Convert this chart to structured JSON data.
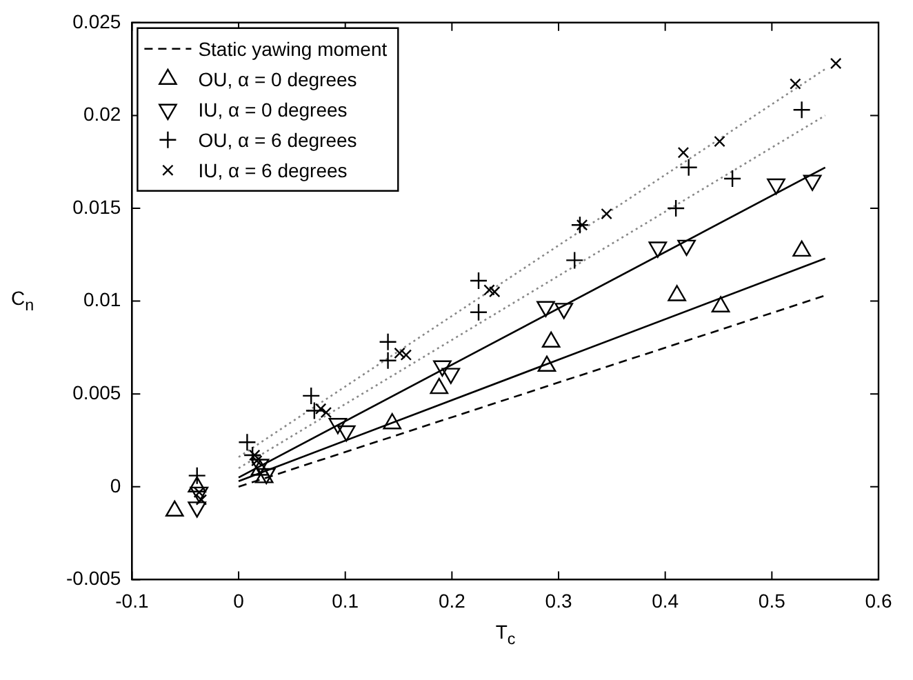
{
  "chart_data": {
    "type": "scatter",
    "xlabel": "T$_{c}$",
    "ylabel": "C$_{n}$",
    "xlim": [
      -0.1,
      0.6
    ],
    "xticks": [
      -0.1,
      0,
      0.1,
      0.2,
      0.3,
      0.4,
      0.5,
      0.6
    ],
    "ylim": [
      -0.005,
      0.025
    ],
    "yticks": [
      -0.005,
      0,
      0.005,
      0.01,
      0.015,
      0.02,
      0.025
    ],
    "grid": false,
    "legend": "top left",
    "series": [
      {
        "name": "Static yawing moment",
        "type": "line",
        "color": "#000000",
        "line_style": "dashed",
        "marker": "none",
        "x": [
          0,
          0.55
        ],
        "values": [
          0,
          0.0103
        ]
      },
      {
        "name": "OU, α = 0 degrees",
        "color": "#000000",
        "marker": "triangle",
        "x": [
          -0.06,
          -0.039,
          0.024,
          0.02,
          0.144,
          0.188,
          0.289,
          0.293,
          0.411,
          0.452,
          0.528
        ],
        "values": [
          -0.0013,
          0,
          0.0005,
          0.0009,
          0.0034,
          0.0053,
          0.0065,
          0.0078,
          0.0103,
          0.0097,
          0.0127
        ]
      },
      {
        "name": "IU, α = 0 degrees",
        "color": "#000000",
        "marker": "triangle-down",
        "x": [
          -0.039,
          -0.037,
          0.02,
          0.026,
          0.093,
          0.101,
          0.191,
          0.199,
          0.288,
          0.305,
          0.393,
          0.42,
          0.504,
          0.538
        ],
        "values": [
          -0.0011,
          -0.0003,
          0.0012,
          0.0007,
          0.0034,
          0.003,
          0.0065,
          0.0061,
          0.0097,
          0.0096,
          0.0129,
          0.013,
          0.0163,
          0.0165
        ]
      },
      {
        "name": "OU, α = 6 degrees",
        "color": "#000000",
        "marker": "cross",
        "x": [
          -0.039,
          0.008,
          0.013,
          0.068,
          0.071,
          0.14,
          0.14,
          0.225,
          0.225,
          0.315,
          0.32,
          0.41,
          0.422,
          0.463,
          0.528
        ],
        "values": [
          0.0006,
          0.0024,
          0.0017,
          0.0049,
          0.0041,
          0.0078,
          0.0068,
          0.0111,
          0.0094,
          0.0122,
          0.0141,
          0.015,
          0.0172,
          0.0166,
          0.0203
        ]
      },
      {
        "name": "IU, α = 6 degrees",
        "color": "#000000",
        "marker": "x",
        "x": [
          -0.037,
          -0.035,
          0.015,
          0.017,
          0.077,
          0.082,
          0.151,
          0.157,
          0.235,
          0.24,
          0.322,
          0.345,
          0.417,
          0.451,
          0.522,
          0.56
        ],
        "values": [
          -0.0003,
          -0.0007,
          0.0017,
          0.0014,
          0.0042,
          0.004,
          0.0072,
          0.0071,
          0.0106,
          0.0105,
          0.0141,
          0.0147,
          0.018,
          0.0186,
          0.0217,
          0.0228
        ]
      },
      {
        "type": "line",
        "color": "#000000",
        "line_style": "solid",
        "marker": "none",
        "x": [
          0,
          0.55
        ],
        "values": [
          0.0003,
          0.0123
        ]
      },
      {
        "type": "line",
        "color": "#000000",
        "line_style": "solid",
        "marker": "none",
        "x": [
          0,
          0.55
        ],
        "values": [
          0.0005,
          0.0172
        ]
      },
      {
        "type": "line",
        "color": "#888888",
        "line_style": "dotted",
        "marker": "none",
        "x": [
          0,
          0.55
        ],
        "values": [
          0.001,
          0.02
        ]
      },
      {
        "type": "line",
        "color": "#888888",
        "line_style": "dotted",
        "marker": "none",
        "x": [
          0,
          0.55
        ],
        "values": [
          0.0016,
          0.0225
        ]
      }
    ]
  }
}
